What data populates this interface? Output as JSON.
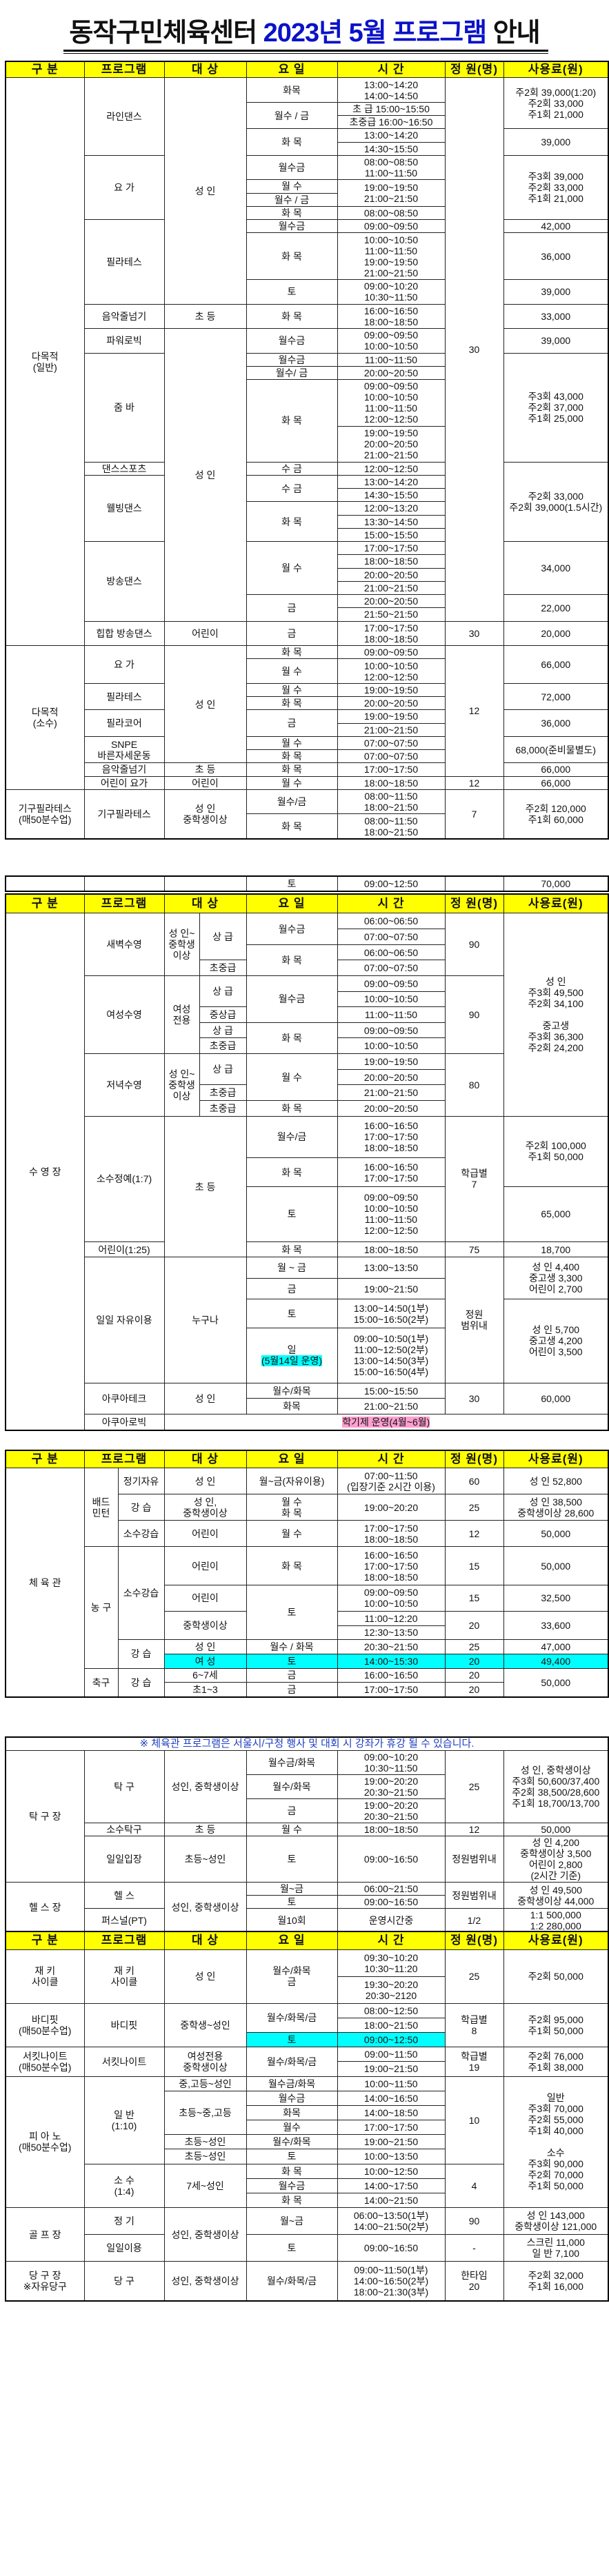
{
  "title": {
    "part1": "동작구민체육센터 ",
    "part2": "2023년 5월 프로그램",
    "part3": " 안내"
  },
  "colors": {
    "header_bg": "#ffff00",
    "title_accent": "#0a12c8",
    "highlight_cyan": "#00ffff",
    "highlight_pink": "#ff9fd0",
    "note_text": "#1f3fc0"
  },
  "tables": [
    {
      "header": [
        "구 분",
        "프로그램",
        "대 상",
        "요 일",
        "시 간",
        "정 원(명)",
        "사용료(원)"
      ],
      "rows": [
        [
          {
            "t": "다목적\n(일반)",
            "rs": 31
          },
          {
            "t": "라인댄스",
            "rs": 5
          },
          {
            "t": "성 인",
            "rs": 12
          },
          "화목",
          "13:00~14:20\n14:00~14:50",
          {
            "t": "30",
            "rs": 30
          },
          {
            "t": "주2회 39,000(1:20)\n주2회 33,000\n주1회 21,000",
            "rs": 3
          }
        ],
        [
          {
            "t": "월수 / 금",
            "rs": 2
          },
          "초 급 15:00~15:50"
        ],
        [
          "초중급 16:00~16:50"
        ],
        [
          {
            "t": "화 목",
            "rs": 2
          },
          "13:00~14:20",
          {
            "t": "39,000",
            "rs": 2
          }
        ],
        [
          "14:30~15:50"
        ],
        [
          {
            "t": "요 가",
            "rs": 4
          },
          "월수금",
          "08:00~08:50\n11:00~11:50",
          {
            "t": "주3회 39,000\n주2회 33,000\n주1회 21,000",
            "rs": 4
          }
        ],
        [
          "월 수",
          {
            "t": "19:00~19:50\n21:00~21:50",
            "rs": 2
          }
        ],
        [
          "월수 / 금"
        ],
        [
          "화 목",
          "08:00~08:50"
        ],
        [
          {
            "t": "필라테스",
            "rs": 3
          },
          "월수금",
          "09:00~09:50",
          "42,000"
        ],
        [
          "화 목",
          "10:00~10:50\n11:00~11:50\n19:00~19:50\n21:00~21:50",
          "36,000"
        ],
        [
          "토",
          "09:00~10:20\n10:30~11:50",
          "39,000"
        ],
        [
          "음악줄넘기",
          "초 등",
          "화 목",
          "16:00~16:50\n18:00~18:50",
          "33,000"
        ],
        [
          "파워로빅",
          {
            "t": "성 인",
            "rs": 17
          },
          "월수금",
          "09:00~09:50\n10:00~10:50",
          "39,000"
        ],
        [
          {
            "t": "줌 바",
            "rs": 4
          },
          "월수금",
          "11:00~11:50",
          {
            "t": "주3회 43,000\n주2회 37,000\n주1회 25,000",
            "rs": 4
          }
        ],
        [
          "월수/ 금",
          "20:00~20:50"
        ],
        [
          {
            "t": "화 목",
            "rs": 2
          },
          "09:00~09:50\n10:00~10:50\n11:00~11:50\n12:00~12:50"
        ],
        [
          "19:00~19:50\n20:00~20:50\n21:00~21:50"
        ],
        [
          "댄스스포츠",
          "수 금",
          "12:00~12:50",
          {
            "t": "주2회 33,000\n주2회 39,000(1.5시간)",
            "rs": 6
          }
        ],
        [
          {
            "t": "웰빙댄스",
            "rs": 5
          },
          {
            "t": "수 금",
            "rs": 2
          },
          "13:00~14:20"
        ],
        [
          "14:30~15:50"
        ],
        [
          {
            "t": "화 목",
            "rs": 3
          },
          "12:00~13:20"
        ],
        [
          "13:30~14:50"
        ],
        [
          "15:00~15:50"
        ],
        [
          {
            "t": "방송댄스",
            "rs": 6
          },
          {
            "t": "월 수",
            "rs": 4
          },
          "17:00~17:50",
          {
            "t": "34,000",
            "rs": 4
          }
        ],
        [
          "18:00~18:50"
        ],
        [
          "20:00~20:50"
        ],
        [
          "21:00~21:50"
        ],
        [
          {
            "t": "금",
            "rs": 2
          },
          "20:00~20:50",
          {
            "t": "22,000",
            "rs": 2
          }
        ],
        [
          "21:50~21:50"
        ],
        [
          "힙합 방송댄스",
          "어린이",
          "금",
          "17:00~17:50\n18:00~18:50",
          "30",
          "20,000"
        ],
        [
          {
            "t": "다목적\n(소수)",
            "rs": 10
          },
          {
            "t": "요 가",
            "rs": 2
          },
          {
            "t": "성 인",
            "rs": 8
          },
          "화 목",
          "09:00~09:50",
          {
            "t": "12",
            "rs": 9
          },
          {
            "t": "66,000",
            "rs": 2
          }
        ],
        [
          "월 수",
          "10:00~10:50\n12:00~12:50"
        ],
        [
          {
            "t": "필라테스",
            "rs": 2
          },
          "월 수",
          "19:00~19:50",
          {
            "t": "72,000",
            "rs": 2
          }
        ],
        [
          "화 목",
          "20:00~20:50"
        ],
        [
          {
            "t": "필라코어",
            "rs": 2
          },
          {
            "t": "금",
            "rs": 2
          },
          "19:00~19:50",
          {
            "t": "36,000",
            "rs": 2
          }
        ],
        [
          "21:00~21:50"
        ],
        [
          {
            "t": "SNPE\n바른자세운동",
            "rs": 2
          },
          "월 수",
          "07:00~07:50",
          {
            "t": "68,000(준비물별도)",
            "rs": 2
          }
        ],
        [
          "화 목",
          "07:00~07:50"
        ],
        [
          "음악줄넘기",
          "초 등",
          "화 목",
          "17:00~17:50",
          "66,000"
        ],
        [
          "어린이 요가",
          "어린이",
          "월 수",
          "18:00~18:50",
          "12",
          "66,000"
        ],
        [
          {
            "t": "기구필라테스\n(매50분수업)",
            "rs": 2
          },
          {
            "t": "기구필라테스",
            "rs": 2
          },
          {
            "t": "성 인\n중학생이상",
            "rs": 2
          },
          "월수/금",
          "08:00~11:50\n18:00~21:50",
          {
            "t": "7",
            "rs": 2
          },
          {
            "t": "주2회 120,000\n주1회 60,000",
            "rs": 2
          }
        ],
        [
          "화 목",
          "08:00~11:50\n18:00~21:50"
        ]
      ]
    },
    {
      "rows": [
        [
          "",
          "",
          "",
          "토",
          "09:00~12:50",
          "",
          "70,000"
        ]
      ]
    },
    {
      "header": [
        "구 분",
        "프로그램",
        {
          "t": "대 상",
          "cs": 2
        },
        "요 일",
        "시 간",
        "정 원(명)",
        "사용료(원)"
      ],
      "rows": [
        [
          {
            "t": "수 영 장",
            "rs": 24
          },
          {
            "t": "새벽수영",
            "rs": 4
          },
          {
            "t": "성 인~\n중학생\n이상",
            "rs": 4
          },
          {
            "t": "상 급",
            "rs": 3
          },
          {
            "t": "월수금",
            "rs": 2
          },
          "06:00~06:50",
          {
            "t": "90",
            "rs": 4
          },
          {
            "t": "성 인\n주3회 49,500\n주2회 34,100\n\n중고생\n주3회 36,300\n주2회 24,200",
            "rs": 13
          }
        ],
        [
          "07:00~07:50"
        ],
        [
          {
            "t": "화 목",
            "rs": 2
          },
          "06:00~06:50"
        ],
        [
          "초중급",
          "07:00~07:50"
        ],
        [
          {
            "t": "여성수영",
            "rs": 5
          },
          {
            "t": "여성\n전용",
            "rs": 5
          },
          {
            "t": "상 급",
            "rs": 2
          },
          {
            "t": "월수금",
            "rs": 3
          },
          "09:00~09:50",
          {
            "t": "90",
            "rs": 5
          }
        ],
        [
          "10:00~10:50"
        ],
        [
          "중상급",
          "11:00~11:50"
        ],
        [
          "상 급",
          {
            "t": "화 목",
            "rs": 2
          },
          "09:00~09:50"
        ],
        [
          "초중급",
          "10:00~10:50"
        ],
        [
          {
            "t": "저녁수영",
            "rs": 4
          },
          {
            "t": "성 인~\n중학생\n이상",
            "rs": 4
          },
          {
            "t": "상 급",
            "rs": 2
          },
          {
            "t": "월 수",
            "rs": 3
          },
          "19:00~19:50",
          {
            "t": "80",
            "rs": 4
          }
        ],
        [
          "20:00~20:50"
        ],
        [
          "초중급",
          "21:00~21:50"
        ],
        [
          "초중급",
          "화 목",
          "20:00~20:50"
        ],
        [
          {
            "t": "소수정예(1:7)",
            "rs": 3
          },
          {
            "t": "초 등",
            "rs": 4,
            "cs": 2
          },
          "월수/금",
          "16:00~16:50\n17:00~17:50\n18:00~18:50",
          {
            "t": "학급별\n7",
            "rs": 3
          },
          {
            "t": "주2회 100,000\n주1회 50,000",
            "rs": 2
          }
        ],
        [
          "화 목",
          "16:00~16:50\n17:00~17:50"
        ],
        [
          "토",
          "09:00~09:50\n10:00~10:50\n11:00~11:50\n12:00~12:50",
          "65,000"
        ],
        [
          "어린이(1:25)",
          "화 목",
          "18:00~18:50",
          "75",
          "18,700"
        ],
        [
          {
            "t": "일일 자유이용",
            "rs": 4
          },
          {
            "t": "누구나",
            "rs": 4,
            "cs": 2
          },
          "월 ~ 금",
          "13:00~13:50",
          {
            "t": "정원\n범위내",
            "rs": 4
          },
          {
            "t": "성 인 4,400\n중고생 3,300\n어린이 2,700",
            "rs": 2
          }
        ],
        [
          "금",
          "19:00~21:50"
        ],
        [
          "토",
          "13:00~14:50(1부)\n15:00~16:50(2부)",
          {
            "t": "성 인 5,700\n중고생 4,200\n어린이 3,500",
            "rs": 2
          }
        ],
        [
          {
            "t": "일",
            "sub": "(5월14일 운영)",
            "mark": "cyan"
          },
          "09:00~10:50(1부)\n11:00~12:50(2부)\n13:00~14:50(3부)\n15:00~16:50(4부)"
        ],
        [
          {
            "t": "아쿠아테크",
            "rs": 2
          },
          {
            "t": "성 인",
            "rs": 2,
            "cs": 2
          },
          "월수/화목",
          "15:00~15:50",
          {
            "t": "30",
            "rs": 2
          },
          {
            "t": "60,000",
            "rs": 2
          }
        ],
        [
          "화목",
          "21:00~21:50"
        ],
        [
          "아쿠아로빅",
          {
            "t": "",
            "sub": "학기제 운영(4월~6월)",
            "mark": "pink",
            "cs": 6
          }
        ]
      ]
    },
    {
      "header": [
        "구 분",
        {
          "t": "프로그램",
          "cs": 2
        },
        "대 상",
        "요 일",
        "시 간",
        "정 원(명)",
        "사용료(원)"
      ],
      "rows": [
        [
          {
            "t": "체 육 관",
            "rs": 11
          },
          {
            "t": "배드\n민턴",
            "rs": 3
          },
          "정기자유",
          "성 인",
          "월~금(자유이용)",
          "07:00~11:50\n(입장기준 2시간 이용)",
          "60",
          "성 인 52,800"
        ],
        [
          "강 습",
          "성 인,\n중학생이상",
          "월 수\n화 목",
          "19:00~20:20",
          "25",
          "성 인 38,500\n중학생이상 28,600"
        ],
        [
          "소수강습",
          "어린이",
          "월 수",
          "17:00~17:50\n18:00~18:50",
          "12",
          "50,000"
        ],
        [
          {
            "t": "농 구",
            "rs": 6
          },
          {
            "t": "소수강습",
            "rs": 4
          },
          "어린이",
          "화 목",
          "16:00~16:50\n17:00~17:50\n18:00~18:50",
          "15",
          "50,000"
        ],
        [
          "어린이",
          {
            "t": "토",
            "rs": 3
          },
          "09:00~09:50\n10:00~10:50",
          "15",
          "32,500"
        ],
        [
          {
            "t": "중학생이상",
            "rs": 2
          },
          "11:00~12:20",
          {
            "t": "20",
            "rs": 2
          },
          {
            "t": "33,600",
            "rs": 2
          }
        ],
        [
          "12:30~13:50"
        ],
        [
          {
            "t": "강 습",
            "rs": 2
          },
          "성 인",
          "월수 / 화목",
          "20:30~21:50",
          "25",
          "47,000"
        ],
        [
          {
            "t": "여 성",
            "bg": "cyan"
          },
          {
            "t": "토",
            "bg": "cyan"
          },
          {
            "t": "14:00~15:30",
            "bg": "cyan"
          },
          {
            "t": "20",
            "bg": "cyan"
          },
          {
            "t": "49,400",
            "bg": "cyan"
          }
        ],
        [
          {
            "t": "축구",
            "rs": 2
          },
          {
            "t": "강 습",
            "rs": 2
          },
          "6~7세",
          "금",
          "16:00~16:50",
          "20",
          {
            "t": "50,000",
            "rs": 2
          }
        ],
        [
          "초1~3",
          "금",
          "17:00~17:50",
          "20"
        ]
      ]
    },
    {
      "rows": [
        [
          {
            "t": "※ 체육관 프로그램은 서울시/구청 행사 및 대회 시 강좌가 휴강 될 수 있습니다.",
            "cs": 7,
            "note": true
          }
        ],
        [
          {
            "t": "탁 구 장",
            "rs": 5
          },
          {
            "t": "탁 구",
            "rs": 3
          },
          {
            "t": "성인, 중학생이상",
            "rs": 3
          },
          "월수금/화목",
          "09:00~10:20\n10:30~11:50",
          {
            "t": "25",
            "rs": 3
          },
          {
            "t": "성 인, 중학생이상\n주3회 50,600/37,400\n주2회 38,500/28,600\n주1회 18,700/13,700",
            "rs": 3
          }
        ],
        [
          "월수/화목",
          "19:00~20:20\n20:30~21:50"
        ],
        [
          "금",
          "19:00~20:20\n20:30~21:50"
        ],
        [
          "소수탁구",
          "초 등",
          "월 수",
          "18:00~18:50",
          "12",
          "50,000"
        ],
        [
          "일일입장",
          "초등~성인",
          "토",
          "09:00~16:50",
          "정원범위내",
          "성 인 4,200\n중학생이상 3,500\n어린이 2,800\n(2시간 기준)"
        ],
        [
          {
            "t": "헬 스 장",
            "rs": 3
          },
          {
            "t": "헬 스",
            "rs": 2
          },
          {
            "t": "성인, 중학생이상",
            "rs": 3
          },
          "월~금",
          "06:00~21:50",
          {
            "t": "정원범위내",
            "rs": 2
          },
          {
            "t": "성 인 49,500\n중학생이상 44,000",
            "rs": 2
          }
        ],
        [
          "토",
          "09:00~16:50"
        ],
        [
          "퍼스널(PT)",
          "월10회",
          "운영시간중",
          "1/2",
          "1:1   500,000\n1:2   280,000"
        ]
      ]
    },
    {
      "header": [
        "구 분",
        "프로그램",
        "대 상",
        "요 일",
        "시 간",
        "정 원(명)",
        "사용료(원)"
      ],
      "rows": [
        [
          {
            "t": "재 키\n사이클",
            "rs": 2
          },
          {
            "t": "재 키\n사이클",
            "rs": 2
          },
          {
            "t": "성 인",
            "rs": 2
          },
          {
            "t": "월수/화목\n금",
            "rs": 2
          },
          "09:30~10:20\n10:30~11:20",
          {
            "t": "25",
            "rs": 2
          },
          {
            "t": "주2회 50,000",
            "rs": 2
          }
        ],
        [
          "19:30~20:20\n20:30~2120"
        ],
        [
          {
            "t": "바디핏\n(매50분수업)",
            "rs": 3
          },
          {
            "t": "바디핏",
            "rs": 3
          },
          {
            "t": "중학생~성인",
            "rs": 3
          },
          {
            "t": "월수/화목/금",
            "rs": 2
          },
          "08:00~12:50",
          {
            "t": "학급별\n8",
            "rs": 3
          },
          {
            "t": "주2회 95,000\n주1회 50,000",
            "rs": 3
          }
        ],
        [
          "18:00~21:50"
        ],
        [
          {
            "t": "토",
            "bg": "cyan"
          },
          {
            "t": "09:00~12:50",
            "bg": "cyan"
          }
        ],
        [
          {
            "t": "서킷나이트\n(매50분수업)",
            "rs": 2
          },
          {
            "t": "서킷나이트",
            "rs": 2
          },
          {
            "t": "여성전용\n중학생이상",
            "rs": 2
          },
          {
            "t": "월수/화목/금",
            "rs": 2
          },
          "09:00~11:50",
          {
            "t": "학급별\n19",
            "rs": 2
          },
          {
            "t": "주2회 76,000\n주1회 38,000",
            "rs": 2
          }
        ],
        [
          "19:00~21:50"
        ],
        [
          {
            "t": "피 아 노\n(매50분수업)",
            "rs": 9
          },
          {
            "t": "일 반\n(1:10)",
            "rs": 6
          },
          "중,고등~성인",
          "월수금/화목",
          "10:00~11:50",
          {
            "t": "10",
            "rs": 6
          },
          {
            "t": "일반\n주3회 70,000\n주2회 55,000\n주1회 40,000\n\n소수\n주3회 90,000\n주2회 70,000\n주1회 50,000",
            "rs": 9
          }
        ],
        [
          {
            "t": "초등~중,고등",
            "rs": 3
          },
          "월수금",
          "14:00~16:50"
        ],
        [
          "화목",
          "14:00~18:50"
        ],
        [
          "월수",
          "17:00~17:50"
        ],
        [
          "초등~성인",
          "월수/화목",
          "19:00~21:50"
        ],
        [
          "초등~성인",
          "토",
          "10:00~13:50"
        ],
        [
          {
            "t": "소 수\n(1:4)",
            "rs": 3
          },
          {
            "t": "7세~성인",
            "rs": 3
          },
          "화 목",
          "10:00~12:50",
          {
            "t": "4",
            "rs": 3
          }
        ],
        [
          "월수금",
          "14:00~17:50"
        ],
        [
          "화 목",
          "14:00~21:50"
        ],
        [
          {
            "t": "골 프 장",
            "rs": 2
          },
          "정 기",
          {
            "t": "성인, 중학생이상",
            "rs": 2
          },
          "월~금",
          "06:00~13:50(1부)\n14:00~21:50(2부)",
          "90",
          "성 인 143,000\n중학생이상 121,000"
        ],
        [
          "일일이용",
          "토",
          "09:00~16:50",
          "-",
          "스크린 11,000\n일 반 7,100"
        ],
        [
          "당 구 장\n※자유당구",
          "당 구",
          "성인, 중학생이상",
          "월수/화목/금",
          "09:00~11:50(1부)\n14:00~16:50(2부)\n18:00~21:30(3부)",
          "한타임\n20",
          "주2회 32,000\n주1회 16,000"
        ]
      ]
    }
  ]
}
